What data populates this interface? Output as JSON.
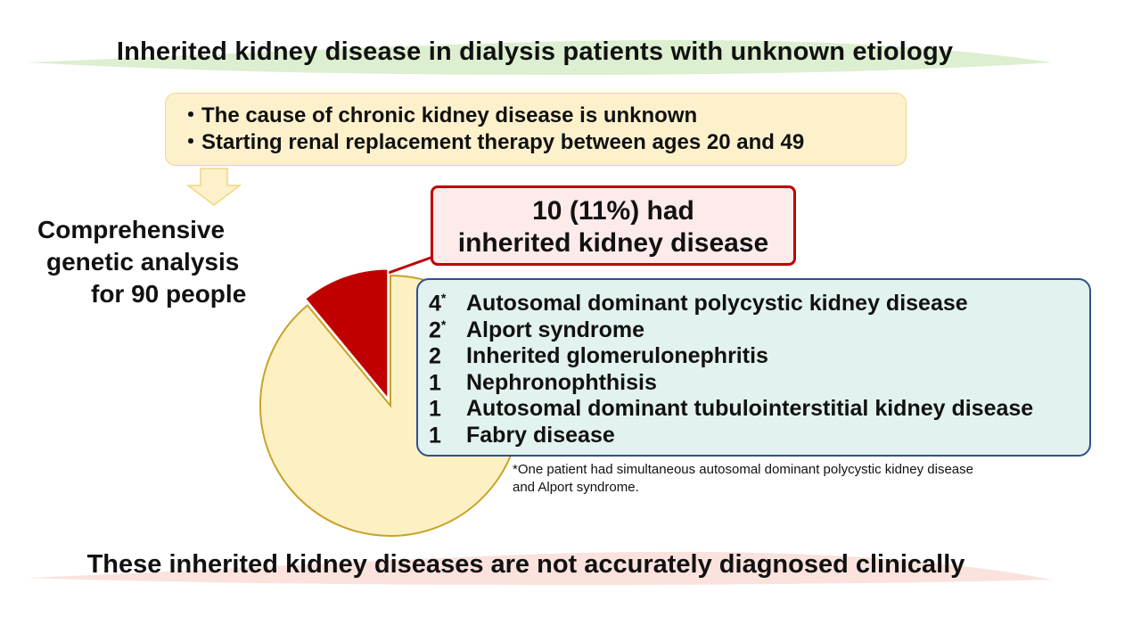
{
  "title": "Inherited kidney disease in dialysis patients with unknown etiology",
  "criteria": [
    "・The cause of chronic kidney disease is unknown",
    "・Starting renal replacement therapy between ages 20 and 49"
  ],
  "analysis": {
    "line1": "Comprehensive",
    "line2": "genetic analysis",
    "line3": "for 90 people"
  },
  "result": {
    "line1": "10 (11%) had",
    "line2": "inherited kidney disease"
  },
  "pie_slices": [
    {
      "label": "inherited kidney disease",
      "fraction": 0.11,
      "color": "#c00000"
    },
    {
      "label": "other",
      "fraction": 0.89,
      "color": "#fdf1c4"
    }
  ],
  "diseases": [
    {
      "count": "4",
      "mark": "*",
      "name": "Autosomal dominant polycystic kidney disease"
    },
    {
      "count": "2",
      "mark": "*",
      "name": "Alport syndrome"
    },
    {
      "count": "2",
      "mark": "",
      "name": "Inherited glomerulonephritis"
    },
    {
      "count": "1",
      "mark": "",
      "name": "Nephronophthisis"
    },
    {
      "count": "1",
      "mark": "",
      "name": "Autosomal dominant tubulointerstitial kidney disease"
    },
    {
      "count": "1",
      "mark": "",
      "name": "Fabry disease"
    }
  ],
  "footnote": {
    "line1": "*One patient had simultaneous autosomal dominant polycystic kidney disease",
    "line2": "and Alport syndrome."
  },
  "conclusion": "These inherited kidney diseases are not accurately diagnosed clinically",
  "colors": {
    "title_band": "#dcefd0",
    "bottom_band": "#fbe2dd",
    "criteria_fill": "#fdf1cc",
    "result_border": "#c00000",
    "diseases_fill": "#e2f2ef",
    "diseases_border": "#2f4f8f"
  }
}
